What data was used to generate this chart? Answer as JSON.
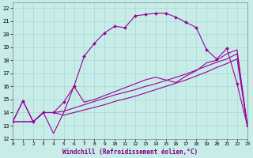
{
  "xlabel": "Windchill (Refroidissement éolien,°C)",
  "background_color": "#c8ede9",
  "grid_color": "#a8d8d4",
  "line_color": "#990099",
  "x_ticks": [
    0,
    1,
    2,
    3,
    4,
    5,
    6,
    7,
    8,
    9,
    10,
    11,
    12,
    13,
    14,
    15,
    16,
    17,
    18,
    19,
    20,
    21,
    22,
    23
  ],
  "y_ticks": [
    12,
    13,
    14,
    15,
    16,
    17,
    18,
    19,
    20,
    21,
    22
  ],
  "xlim": [
    0,
    23
  ],
  "ylim": [
    12,
    22.4
  ],
  "curve_marked_x": [
    0,
    1,
    2,
    3,
    4,
    5,
    6,
    7,
    8,
    9,
    10,
    11,
    12,
    13,
    14,
    15,
    16,
    17,
    18,
    19,
    20,
    21,
    22,
    23
  ],
  "curve_marked_y": [
    13.3,
    14.9,
    13.3,
    14.0,
    14.0,
    14.8,
    16.0,
    18.3,
    19.3,
    20.1,
    20.6,
    20.5,
    21.4,
    21.5,
    21.6,
    21.6,
    21.3,
    20.9,
    20.5,
    18.8,
    18.1,
    18.9,
    16.2,
    13.0
  ],
  "curve_jagged_x": [
    0,
    1,
    2,
    3,
    4,
    5,
    6,
    7,
    8,
    9,
    10,
    11,
    12,
    13,
    14,
    15,
    16,
    17,
    18,
    19,
    20,
    21,
    22,
    23
  ],
  "curve_jagged_y": [
    13.3,
    14.9,
    13.3,
    14.0,
    12.4,
    14.0,
    16.0,
    14.8,
    15.0,
    15.3,
    15.6,
    15.9,
    16.2,
    16.5,
    16.7,
    16.5,
    16.3,
    16.8,
    17.2,
    17.8,
    18.0,
    18.5,
    18.8,
    13.0
  ],
  "curve_diag1_x": [
    0,
    2,
    3,
    4,
    5,
    6,
    7,
    8,
    9,
    10,
    11,
    12,
    13,
    14,
    15,
    16,
    17,
    18,
    19,
    20,
    21,
    22,
    23
  ],
  "curve_diag1_y": [
    13.3,
    13.3,
    14.0,
    14.0,
    14.1,
    14.35,
    14.6,
    14.85,
    15.1,
    15.35,
    15.55,
    15.75,
    16.0,
    16.2,
    16.45,
    16.7,
    16.95,
    17.25,
    17.55,
    17.85,
    18.1,
    18.5,
    13.0
  ],
  "curve_diag2_x": [
    0,
    2,
    3,
    4,
    5,
    6,
    7,
    8,
    9,
    10,
    11,
    12,
    13,
    14,
    15,
    16,
    17,
    18,
    19,
    20,
    21,
    22,
    23
  ],
  "curve_diag2_y": [
    13.3,
    13.3,
    14.0,
    14.0,
    13.8,
    14.0,
    14.2,
    14.4,
    14.6,
    14.85,
    15.05,
    15.25,
    15.5,
    15.75,
    16.0,
    16.25,
    16.5,
    16.8,
    17.1,
    17.45,
    17.75,
    18.1,
    13.0
  ]
}
